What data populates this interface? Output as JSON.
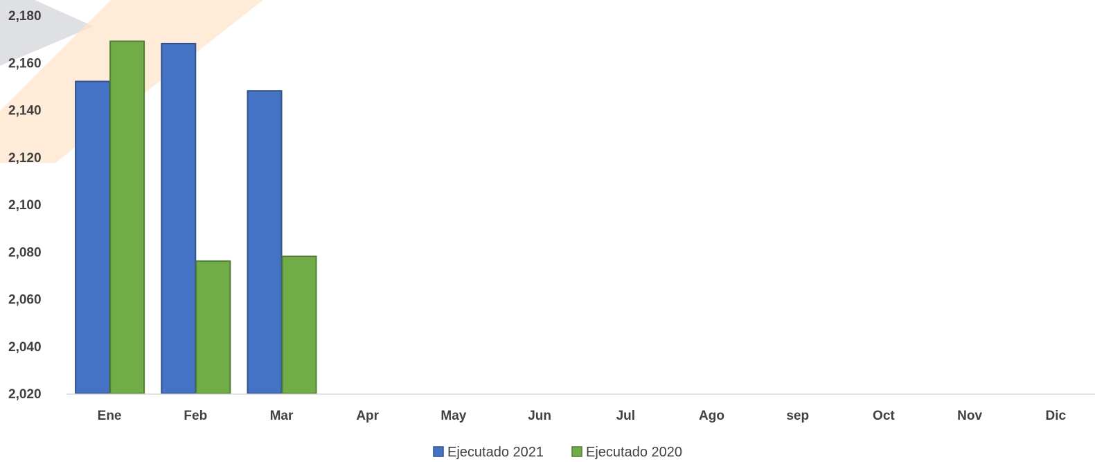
{
  "chart_data": {
    "type": "bar",
    "categories": [
      "Ene",
      "Feb",
      "Mar",
      "Apr",
      "May",
      "Jun",
      "Jul",
      "Ago",
      "sep",
      "Oct",
      "Nov",
      "Dic"
    ],
    "series": [
      {
        "name": "Ejecutado 2021",
        "values": [
          2152,
          2168,
          2148,
          null,
          null,
          null,
          null,
          null,
          null,
          null,
          null,
          null
        ],
        "color": "#4472c4",
        "stroke": "#2f528f"
      },
      {
        "name": "Ejecutado 2020",
        "values": [
          2169,
          2076,
          2078,
          null,
          null,
          null,
          null,
          null,
          null,
          null,
          null,
          null
        ],
        "color": "#70ad47",
        "stroke": "#507e32"
      }
    ],
    "ylim": [
      2020,
      2180
    ],
    "yticks": [
      "2,020",
      "2,040",
      "2,060",
      "2,080",
      "2,100",
      "2,120",
      "2,140",
      "2,160",
      "2,180"
    ],
    "title": "",
    "xlabel": "",
    "ylabel": "",
    "grid": false,
    "legend_position": "bottom"
  },
  "watermark_colors": {
    "gray": "#dcdde1",
    "orange": "#fde3c8"
  }
}
